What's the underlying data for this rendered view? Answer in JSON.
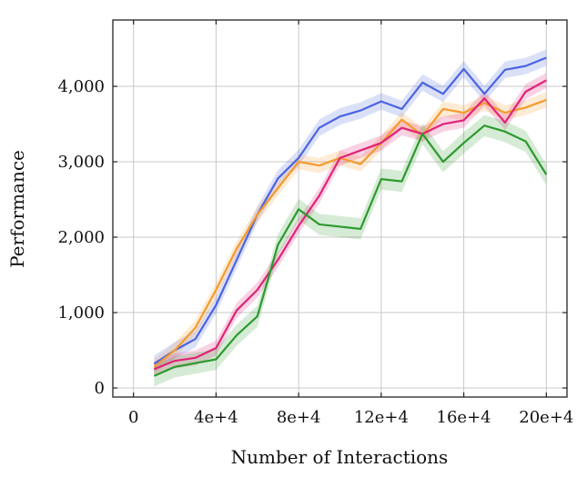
{
  "chart_data": {
    "type": "line",
    "title": "",
    "xlabel": "Number of Interactions",
    "ylabel": "Performance",
    "xlim": [
      -1,
      21
    ],
    "ylim": [
      -120,
      4880
    ],
    "x_ticks": [
      0,
      4,
      8,
      12,
      16,
      20
    ],
    "x_tick_labels": [
      "0",
      "4e+4",
      "8e+4",
      "12e+4",
      "16e+4",
      "20e+4"
    ],
    "y_ticks": [
      0,
      1000,
      2000,
      3000,
      4000
    ],
    "y_tick_labels": [
      "0",
      "1,000",
      "2,000",
      "3,000",
      "4,000"
    ],
    "grid": true,
    "legend": "none",
    "x": [
      1,
      2,
      3,
      4,
      5,
      6,
      7,
      8,
      9,
      10,
      11,
      12,
      13,
      14,
      15,
      16,
      17,
      18,
      19,
      20
    ],
    "series": [
      {
        "color": "#4a64e2",
        "values": [
          320,
          500,
          650,
          1100,
          1700,
          2300,
          2780,
          3050,
          3450,
          3600,
          3680,
          3800,
          3700,
          4050,
          3900,
          4230,
          3900,
          4220,
          4270,
          4380
        ],
        "band": 110
      },
      {
        "color": "#f59a2c",
        "values": [
          280,
          500,
          800,
          1300,
          1850,
          2300,
          2650,
          3000,
          2950,
          3050,
          2970,
          3250,
          3560,
          3350,
          3700,
          3650,
          3780,
          3650,
          3720,
          3820
        ],
        "band": 100
      },
      {
        "color": "#e02378",
        "values": [
          250,
          360,
          400,
          530,
          1030,
          1300,
          1700,
          2150,
          2550,
          3050,
          3150,
          3250,
          3450,
          3370,
          3500,
          3550,
          3840,
          3520,
          3930,
          4080
        ],
        "band": 100
      },
      {
        "color": "#2e9a2e",
        "values": [
          160,
          280,
          330,
          380,
          700,
          950,
          1900,
          2370,
          2170,
          2140,
          2110,
          2770,
          2740,
          3370,
          3000,
          3250,
          3480,
          3400,
          3270,
          2830
        ],
        "band": 140
      }
    ]
  }
}
